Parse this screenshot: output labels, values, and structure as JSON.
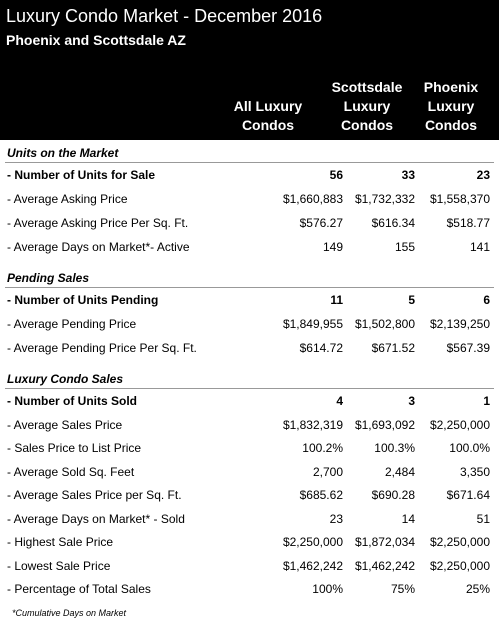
{
  "header": {
    "title": "Luxury Condo Market - December  2016",
    "subtitle": "Phoenix and Scottsdale AZ",
    "columns": [
      [
        "All Luxury",
        "Condos"
      ],
      [
        "Scottsdale",
        "Luxury",
        "Condos"
      ],
      [
        "Phoenix",
        "Luxury",
        "Condos"
      ]
    ]
  },
  "sections": [
    {
      "title": "Units on the Market",
      "rows": [
        {
          "label": "- Number of Units for Sale",
          "values": [
            "56",
            "33",
            "23"
          ]
        },
        {
          "label": "- Average Asking Price",
          "values": [
            "$1,660,883",
            "$1,732,332",
            "$1,558,370"
          ]
        },
        {
          "label": "- Average Asking Price Per Sq. Ft.",
          "values": [
            "$576.27",
            "$616.34",
            "$518.77"
          ]
        },
        {
          "label": "- Average Days on Market*- Active",
          "values": [
            "149",
            "155",
            "141"
          ]
        }
      ]
    },
    {
      "title": "Pending Sales",
      "rows": [
        {
          "label": "- Number of Units Pending",
          "values": [
            "11",
            "5",
            "6"
          ]
        },
        {
          "label": "- Average Pending Price",
          "values": [
            "$1,849,955",
            "$1,502,800",
            "$2,139,250"
          ]
        },
        {
          "label": "- Average Pending Price Per Sq. Ft.",
          "values": [
            "$614.72",
            "$671.52",
            "$567.39"
          ]
        }
      ]
    },
    {
      "title": "Luxury Condo Sales",
      "rows": [
        {
          "label": "- Number of Units Sold",
          "values": [
            "4",
            "3",
            "1"
          ]
        },
        {
          "label": "- Average Sales Price",
          "values": [
            "$1,832,319",
            "$1,693,092",
            "$2,250,000"
          ]
        },
        {
          "label": "- Sales Price to List Price",
          "values": [
            "100.2%",
            "100.3%",
            "100.0%"
          ]
        },
        {
          "label": "- Average Sold Sq. Feet",
          "values": [
            "2,700",
            "2,484",
            "3,350"
          ]
        },
        {
          "label": "- Average Sales Price per Sq. Ft.",
          "values": [
            "$685.62",
            "$690.28",
            "$671.64"
          ]
        },
        {
          "label": "- Average Days on Market* - Sold",
          "values": [
            "23",
            "14",
            "51"
          ]
        },
        {
          "label": "- Highest Sale Price",
          "values": [
            "$2,250,000",
            "$1,872,034",
            "$2,250,000"
          ]
        },
        {
          "label": "- Lowest Sale Price",
          "values": [
            "$1,462,242",
            "$1,462,242",
            "$2,250,000"
          ]
        },
        {
          "label": "- Percentage of Total Sales",
          "values": [
            "100%",
            "75%",
            "25%"
          ]
        }
      ]
    }
  ],
  "footnote": "*Cumulative Days on Market"
}
